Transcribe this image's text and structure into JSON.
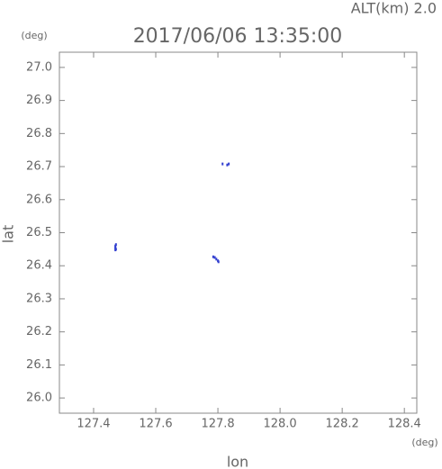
{
  "chart_data": {
    "type": "scatter",
    "title": "2017/06/06 13:35:00",
    "annotation": "ALT(km) 2.0",
    "y_unit": "(deg)",
    "x_unit": "(deg)",
    "xlabel": "lon",
    "ylabel": "lat",
    "color": "#3340d0",
    "series": [
      {
        "x": [
          127.47,
          127.47,
          127.47,
          127.47,
          127.472,
          127.472,
          127.785,
          127.79,
          127.795,
          127.8,
          127.802,
          127.815,
          127.83,
          127.835
        ],
        "values": [
          26.448,
          26.452,
          26.456,
          26.46,
          26.464,
          26.45,
          26.427,
          26.425,
          26.42,
          26.415,
          26.412,
          26.708,
          26.705,
          26.708
        ]
      }
    ],
    "xlim": [
      127.29,
      128.44
    ],
    "ylim": [
      25.954,
      27.046
    ],
    "xticks": [
      127.4,
      127.6,
      127.8,
      {
        "value": 128,
        "label": "128.0"
      },
      128.2,
      128.4
    ],
    "yticks": [
      {
        "value": 26,
        "label": "26.0"
      },
      26.1,
      26.2,
      26.3,
      26.4,
      26.5,
      26.6,
      26.7,
      26.8,
      26.9,
      {
        "value": 27,
        "label": "27.0"
      }
    ]
  }
}
